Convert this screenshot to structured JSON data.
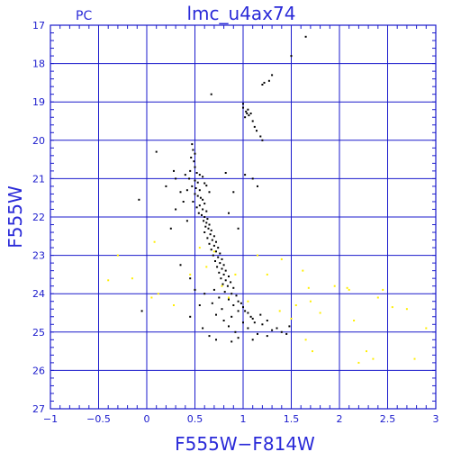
{
  "chart_data": {
    "type": "scatter",
    "title": "lmc_u4ax74",
    "corner_label": "PC",
    "xlabel": "F555W−F814W",
    "ylabel": "F555W",
    "xlim": [
      -1,
      3
    ],
    "ylim": [
      27,
      17
    ],
    "y_inverted": true,
    "grid": true,
    "xticks": [
      "−1",
      "−0.5",
      "0",
      "0.5",
      "1",
      "1.5",
      "2",
      "2.5",
      "3"
    ],
    "yticks": [
      "17",
      "18",
      "19",
      "20",
      "21",
      "22",
      "23",
      "24",
      "25",
      "26",
      "27"
    ],
    "colors": {
      "frame": "#1a1acc",
      "grid": "#1a1acc",
      "text": "#2a2ad8",
      "stars": "#000000",
      "faint_stars": "#ffee00"
    },
    "series": [
      {
        "color": "#000000",
        "points": [
          [
            1.65,
            17.3
          ],
          [
            1.5,
            17.8
          ],
          [
            1.3,
            18.3
          ],
          [
            1.27,
            18.45
          ],
          [
            1.22,
            18.5
          ],
          [
            1.2,
            18.55
          ],
          [
            0.67,
            18.8
          ],
          [
            1.0,
            19.05
          ],
          [
            1.0,
            19.15
          ],
          [
            1.05,
            19.2
          ],
          [
            1.03,
            19.25
          ],
          [
            1.08,
            19.3
          ],
          [
            1.06,
            19.35
          ],
          [
            1.02,
            19.4
          ],
          [
            1.1,
            19.5
          ],
          [
            1.12,
            19.65
          ],
          [
            1.14,
            19.75
          ],
          [
            1.18,
            19.9
          ],
          [
            1.2,
            20.0
          ],
          [
            1.04,
            19.3
          ],
          [
            0.47,
            20.1
          ],
          [
            0.48,
            20.25
          ],
          [
            0.5,
            20.35
          ],
          [
            0.46,
            20.45
          ],
          [
            0.49,
            20.55
          ],
          [
            0.5,
            20.7
          ],
          [
            0.45,
            20.8
          ],
          [
            0.52,
            20.85
          ],
          [
            0.55,
            20.9
          ],
          [
            0.58,
            20.95
          ],
          [
            0.44,
            21.0
          ],
          [
            0.5,
            21.05
          ],
          [
            0.53,
            21.1
          ],
          [
            0.6,
            21.12
          ],
          [
            0.62,
            21.18
          ],
          [
            0.47,
            21.2
          ],
          [
            0.51,
            21.25
          ],
          [
            0.55,
            21.3
          ],
          [
            0.42,
            21.3
          ],
          [
            0.35,
            21.35
          ],
          [
            0.65,
            21.35
          ],
          [
            0.5,
            21.4
          ],
          [
            0.53,
            21.45
          ],
          [
            0.56,
            21.5
          ],
          [
            0.58,
            21.55
          ],
          [
            0.48,
            21.6
          ],
          [
            0.6,
            21.65
          ],
          [
            0.55,
            21.7
          ],
          [
            0.52,
            21.75
          ],
          [
            0.58,
            21.8
          ],
          [
            0.62,
            21.85
          ],
          [
            0.54,
            21.9
          ],
          [
            0.57,
            21.95
          ],
          [
            0.6,
            22.0
          ],
          [
            0.63,
            22.05
          ],
          [
            0.59,
            22.1
          ],
          [
            0.62,
            22.15
          ],
          [
            0.65,
            22.2
          ],
          [
            0.61,
            22.25
          ],
          [
            0.64,
            22.3
          ],
          [
            0.67,
            22.35
          ],
          [
            0.6,
            22.4
          ],
          [
            0.66,
            22.45
          ],
          [
            0.7,
            22.5
          ],
          [
            0.63,
            22.55
          ],
          [
            0.68,
            22.6
          ],
          [
            0.72,
            22.65
          ],
          [
            0.65,
            22.7
          ],
          [
            0.7,
            22.75
          ],
          [
            0.74,
            22.8
          ],
          [
            0.67,
            22.85
          ],
          [
            0.72,
            22.9
          ],
          [
            0.76,
            22.95
          ],
          [
            0.69,
            23.0
          ],
          [
            0.74,
            23.05
          ],
          [
            0.78,
            23.1
          ],
          [
            0.71,
            23.15
          ],
          [
            0.76,
            23.2
          ],
          [
            0.8,
            23.25
          ],
          [
            0.73,
            23.3
          ],
          [
            0.78,
            23.35
          ],
          [
            0.82,
            23.4
          ],
          [
            0.75,
            23.45
          ],
          [
            0.8,
            23.5
          ],
          [
            0.85,
            23.55
          ],
          [
            0.77,
            23.6
          ],
          [
            0.82,
            23.65
          ],
          [
            0.87,
            23.7
          ],
          [
            0.79,
            23.75
          ],
          [
            0.84,
            23.8
          ],
          [
            0.9,
            23.85
          ],
          [
            0.7,
            23.9
          ],
          [
            0.81,
            23.95
          ],
          [
            0.88,
            24.0
          ],
          [
            0.93,
            24.05
          ],
          [
            0.75,
            24.1
          ],
          [
            0.85,
            24.15
          ],
          [
            0.95,
            24.2
          ],
          [
            0.68,
            24.25
          ],
          [
            0.9,
            24.3
          ],
          [
            1.0,
            24.35
          ],
          [
            0.78,
            24.4
          ],
          [
            0.95,
            24.45
          ],
          [
            1.05,
            24.5
          ],
          [
            0.72,
            24.55
          ],
          [
            0.88,
            24.6
          ],
          [
            1.1,
            24.65
          ],
          [
            0.8,
            24.7
          ],
          [
            1.0,
            24.75
          ],
          [
            1.2,
            24.8
          ],
          [
            0.85,
            24.85
          ],
          [
            1.05,
            24.9
          ],
          [
            1.3,
            24.95
          ],
          [
            0.92,
            25.0
          ],
          [
            1.15,
            25.05
          ],
          [
            0.95,
            25.15
          ],
          [
            1.4,
            25.0
          ],
          [
            1.48,
            24.85
          ],
          [
            0.98,
            24.25
          ],
          [
            1.02,
            24.45
          ],
          [
            1.08,
            24.6
          ],
          [
            1.12,
            24.75
          ],
          [
            1.18,
            24.55
          ],
          [
            1.25,
            24.7
          ],
          [
            1.35,
            24.9
          ],
          [
            1.45,
            25.05
          ],
          [
            0.6,
            24.0
          ],
          [
            0.55,
            24.3
          ],
          [
            0.5,
            23.9
          ],
          [
            0.45,
            24.6
          ],
          [
            0.58,
            24.9
          ],
          [
            0.65,
            25.1
          ],
          [
            0.72,
            25.2
          ],
          [
            0.88,
            25.25
          ],
          [
            1.1,
            25.2
          ],
          [
            1.25,
            25.1
          ],
          [
            0.3,
            21.8
          ],
          [
            0.25,
            22.3
          ],
          [
            0.2,
            21.2
          ],
          [
            0.1,
            20.3
          ],
          [
            -0.08,
            21.55
          ],
          [
            0.82,
            20.85
          ],
          [
            1.02,
            20.9
          ],
          [
            1.1,
            21.0
          ],
          [
            1.15,
            21.2
          ],
          [
            0.9,
            21.35
          ],
          [
            0.95,
            22.3
          ],
          [
            0.35,
            23.25
          ],
          [
            0.45,
            23.6
          ],
          [
            -0.05,
            24.45
          ],
          [
            0.85,
            21.9
          ],
          [
            0.3,
            21.0
          ],
          [
            0.4,
            20.9
          ],
          [
            0.38,
            21.6
          ],
          [
            0.42,
            22.1
          ],
          [
            0.28,
            20.8
          ]
        ]
      },
      {
        "color": "#ffee00",
        "points": [
          [
            -0.3,
            23.0
          ],
          [
            -0.4,
            23.65
          ],
          [
            -0.15,
            23.6
          ],
          [
            0.08,
            22.65
          ],
          [
            0.12,
            24.0
          ],
          [
            0.45,
            23.5
          ],
          [
            0.55,
            22.8
          ],
          [
            0.62,
            23.3
          ],
          [
            0.7,
            22.9
          ],
          [
            0.78,
            23.8
          ],
          [
            0.85,
            24.1
          ],
          [
            0.92,
            23.5
          ],
          [
            1.05,
            24.2
          ],
          [
            1.15,
            23.0
          ],
          [
            1.25,
            23.5
          ],
          [
            1.4,
            23.1
          ],
          [
            1.55,
            24.3
          ],
          [
            1.62,
            23.4
          ],
          [
            1.68,
            23.85
          ],
          [
            1.7,
            24.2
          ],
          [
            1.72,
            25.5
          ],
          [
            1.65,
            25.2
          ],
          [
            1.95,
            23.8
          ],
          [
            2.1,
            23.9
          ],
          [
            2.15,
            24.7
          ],
          [
            2.2,
            25.8
          ],
          [
            2.28,
            25.5
          ],
          [
            2.35,
            25.7
          ],
          [
            2.4,
            24.1
          ],
          [
            2.45,
            23.9
          ],
          [
            2.7,
            24.4
          ],
          [
            2.78,
            25.7
          ],
          [
            2.9,
            24.9
          ],
          [
            2.08,
            23.85
          ],
          [
            1.38,
            24.45
          ],
          [
            1.5,
            24.65
          ],
          [
            0.05,
            24.1
          ],
          [
            0.28,
            24.3
          ],
          [
            1.8,
            24.5
          ],
          [
            2.55,
            24.35
          ]
        ]
      }
    ]
  }
}
